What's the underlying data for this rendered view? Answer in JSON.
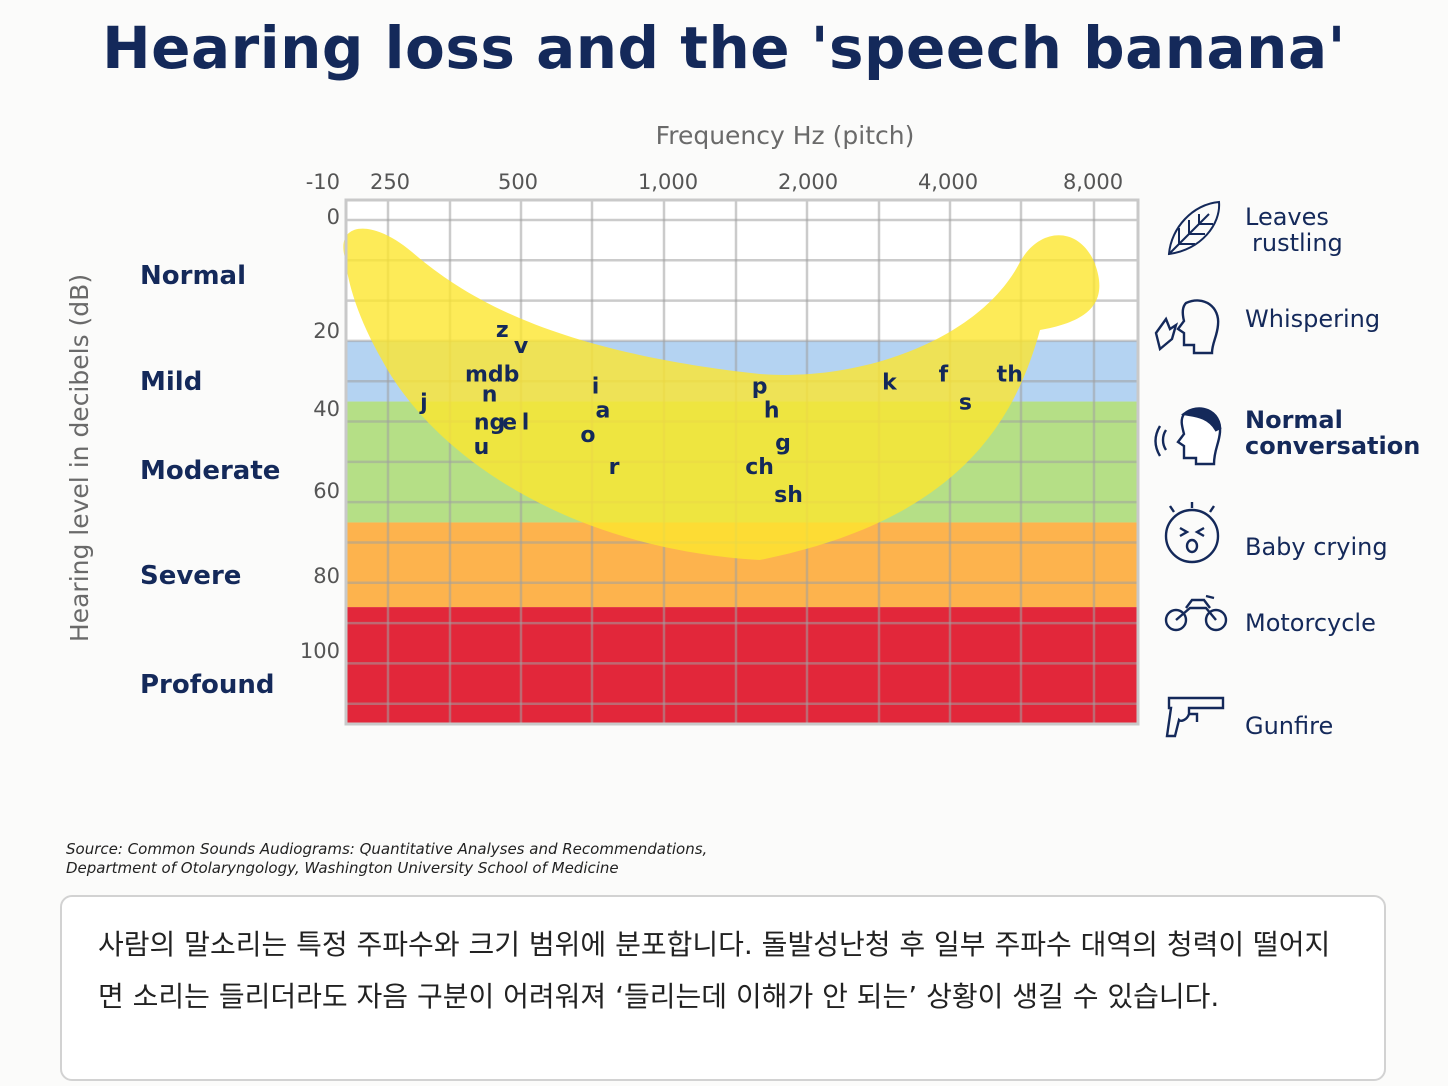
{
  "title": "Hearing loss and the 'speech banana'",
  "source_line1": "Source: Common Sounds Audiograms: Quantitative Analyses and Recommendations,",
  "source_line2": "Department of Otolaryngology, Washington University School of Medicine",
  "note": "사람의 말소리는 특정 주파수와 크기 범위에 분포합니다. 돌발성난청 후 일부 주파수 대역의 청력이 떨어지면 소리는 들리더라도 자음 구분이 어려워져 ‘들리는데 이해가 안 되는’ 상황이 생길 수 있습니다.",
  "chart_data": {
    "type": "scatter",
    "title": "Hearing loss and the 'speech banana'",
    "xlabel": "Frequency Hz (pitch)",
    "ylabel": "Hearing level in decibels (dB)",
    "x_axis_position": "top",
    "x_scale": "log",
    "x_ticks": [
      "250",
      "500",
      "1,000",
      "2,000",
      "4,000",
      "8,000"
    ],
    "y_ticks": [
      "-10",
      "0",
      "20",
      "40",
      "60",
      "80",
      "100"
    ],
    "y_range": [
      -10,
      120
    ],
    "y_reversed": true,
    "grid": true,
    "hearing_levels": [
      {
        "name": "Normal",
        "from_db": -10,
        "to_db": 25,
        "color": "#ffffff"
      },
      {
        "name": "Mild",
        "from_db": 25,
        "to_db": 40,
        "color": "#b4d3f2"
      },
      {
        "name": "Moderate",
        "from_db": 40,
        "to_db": 70,
        "color": "#b5df86"
      },
      {
        "name": "Severe",
        "from_db": 70,
        "to_db": 91,
        "color": "#fdb34d"
      },
      {
        "name": "Profound",
        "from_db": 91,
        "to_db": 120,
        "color": "#e2273a"
      }
    ],
    "speech_banana": {
      "color": "#fde62e",
      "shape": "banana",
      "frequency_range_hz": [
        200,
        7200
      ],
      "db_range": [
        0,
        76
      ]
    },
    "phonemes": [
      {
        "label": "z",
        "hz": 380,
        "db": 22
      },
      {
        "label": "v",
        "hz": 420,
        "db": 26
      },
      {
        "label": "mdb",
        "hz": 360,
        "db": 33
      },
      {
        "label": "n",
        "hz": 355,
        "db": 38
      },
      {
        "label": "j",
        "hz": 250,
        "db": 40
      },
      {
        "label": "ng",
        "hz": 355,
        "db": 45
      },
      {
        "label": "e",
        "hz": 395,
        "db": 45
      },
      {
        "label": "l",
        "hz": 430,
        "db": 45
      },
      {
        "label": "u",
        "hz": 340,
        "db": 51
      },
      {
        "label": "i",
        "hz": 625,
        "db": 36
      },
      {
        "label": "a",
        "hz": 650,
        "db": 42
      },
      {
        "label": "o",
        "hz": 600,
        "db": 48
      },
      {
        "label": "r",
        "hz": 690,
        "db": 56
      },
      {
        "label": "p",
        "hz": 1500,
        "db": 36
      },
      {
        "label": "h",
        "hz": 1600,
        "db": 42
      },
      {
        "label": "g",
        "hz": 1700,
        "db": 50
      },
      {
        "label": "ch",
        "hz": 1500,
        "db": 56
      },
      {
        "label": "sh",
        "hz": 1750,
        "db": 63
      },
      {
        "label": "k",
        "hz": 3000,
        "db": 35
      },
      {
        "label": "f",
        "hz": 4000,
        "db": 33
      },
      {
        "label": "s",
        "hz": 4500,
        "db": 40
      },
      {
        "label": "th",
        "hz": 5700,
        "db": 33
      }
    ],
    "reference_sounds": [
      {
        "label_lines": [
          "Leaves",
          "rustling"
        ],
        "icon": "leaf-icon",
        "bold": false
      },
      {
        "label_lines": [
          "Whispering"
        ],
        "icon": "whisper-icon",
        "bold": false
      },
      {
        "label_lines": [
          "Normal",
          "conversation"
        ],
        "icon": "speaking-head-icon",
        "bold": true
      },
      {
        "label_lines": [
          "Baby crying"
        ],
        "icon": "baby-icon",
        "bold": false
      },
      {
        "label_lines": [
          "Motorcycle"
        ],
        "icon": "motorcycle-icon",
        "bold": false
      },
      {
        "label_lines": [
          "Gunfire"
        ],
        "icon": "gun-icon",
        "bold": false
      }
    ]
  }
}
